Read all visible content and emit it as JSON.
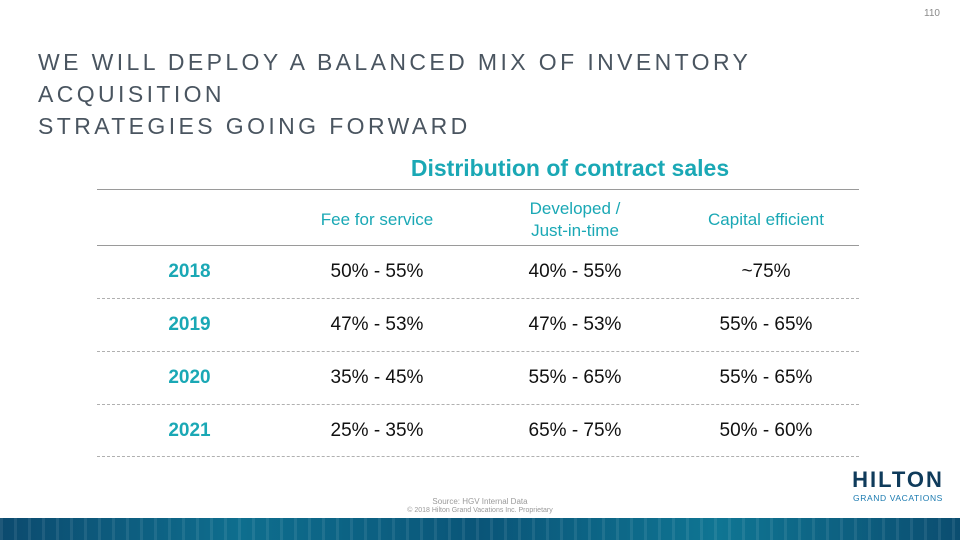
{
  "page_number": "110",
  "title_line1": "WE WILL DEPLOY A BALANCED MIX OF INVENTORY ACQUISITION",
  "title_line2": "STRATEGIES GOING FORWARD",
  "table": {
    "heading": "Distribution of contract sales",
    "columns": {
      "fee": "Fee for service",
      "dev_line1": "Developed /",
      "dev_line2": "Just-in-time",
      "cap": "Capital efficient"
    },
    "rows": [
      {
        "year": "2018",
        "fee": "50% - 55%",
        "dev": "40% - 55%",
        "cap": "~75%"
      },
      {
        "year": "2019",
        "fee": "47% - 53%",
        "dev": "47% - 53%",
        "cap": "55% - 65%"
      },
      {
        "year": "2020",
        "fee": "35% - 45%",
        "dev": "55% - 65%",
        "cap": "55% - 65%"
      },
      {
        "year": "2021",
        "fee": "25% - 35%",
        "dev": "65% - 75%",
        "cap": "50% - 60%"
      }
    ]
  },
  "footer": {
    "source": "Source: HGV Internal Data",
    "copyright": "© 2018 Hilton Grand Vacations Inc. Proprietary"
  },
  "logo": {
    "main": "HILTON",
    "sub": "GRAND VACATIONS",
    "brand_color": "#0f3b5b"
  },
  "colors": {
    "accent": "#1aa8b5",
    "title": "#4a5560"
  }
}
